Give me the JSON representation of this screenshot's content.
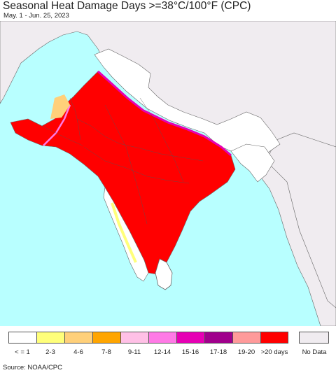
{
  "header": {
    "title": "Seasonal Heat Damage Days >=38°C/100°F (CPC)",
    "date_range": "May. 1 - Jun. 25, 2023"
  },
  "map": {
    "ocean_color": "#b8ffff",
    "land_outside_color": "#f0ecf0",
    "low_color": "#ffffff",
    "heat_color": "#ff0000",
    "border_color": "#555555"
  },
  "legend": {
    "bins": [
      {
        "label": "< = 1",
        "color": "#ffffff"
      },
      {
        "label": "2-3",
        "color": "#ffff7a"
      },
      {
        "label": "4-6",
        "color": "#ffd07a"
      },
      {
        "label": "7-8",
        "color": "#ffa500"
      },
      {
        "label": "9-11",
        "color": "#ffc0e6"
      },
      {
        "label": "12-14",
        "color": "#ff7ae6"
      },
      {
        "label": "15-16",
        "color": "#e600b4"
      },
      {
        "label": "17-18",
        "color": "#a0008c"
      },
      {
        "label": "19-20",
        "color": "#ff9a9a"
      },
      {
        "label": ">20 days",
        "color": "#ff0000"
      }
    ],
    "no_data": {
      "label": "No Data",
      "color": "#f0ecf0"
    }
  },
  "footer": {
    "source": "Source: NOAA/CPC"
  }
}
